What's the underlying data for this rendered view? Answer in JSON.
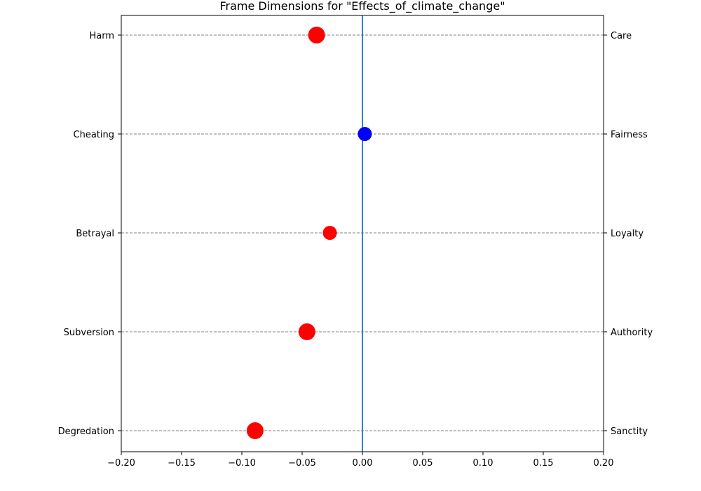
{
  "chart_data": {
    "type": "scatter",
    "title": "Frame Dimensions for \"Effects_of_climate_change\"",
    "xlabel": "",
    "ylabel": "",
    "xlim": [
      -0.2,
      0.2
    ],
    "x_ticks": [
      -0.2,
      -0.15,
      -0.1,
      -0.05,
      0.0,
      0.05,
      0.1,
      0.15,
      0.2
    ],
    "x_tick_labels": [
      "−0.20",
      "−0.15",
      "−0.10",
      "−0.05",
      "0.00",
      "0.05",
      "0.10",
      "0.15",
      "0.20"
    ],
    "grid": "horizontal dashed lines at each category",
    "reference_line_x": 0.0,
    "left_labels": [
      "Harm",
      "Cheating",
      "Betrayal",
      "Subversion",
      "Degredation"
    ],
    "right_labels": [
      "Care",
      "Fairness",
      "Loyalty",
      "Authority",
      "Sanctity"
    ],
    "points": [
      {
        "left": "Harm",
        "right": "Care",
        "value": -0.038,
        "color": "#ff0000",
        "size": "large"
      },
      {
        "left": "Cheating",
        "right": "Fairness",
        "value": 0.002,
        "color": "#0000ff",
        "size": "medium"
      },
      {
        "left": "Betrayal",
        "right": "Loyalty",
        "value": -0.027,
        "color": "#ff0000",
        "size": "medium"
      },
      {
        "left": "Subversion",
        "right": "Authority",
        "value": -0.046,
        "color": "#ff0000",
        "size": "large"
      },
      {
        "left": "Degredation",
        "right": "Sanctity",
        "value": -0.089,
        "color": "#ff0000",
        "size": "large"
      }
    ],
    "colors": {
      "negative": "#ff0000",
      "positive": "#0000ff",
      "zero_line": "#1f77b4",
      "grid": "#808080"
    }
  }
}
